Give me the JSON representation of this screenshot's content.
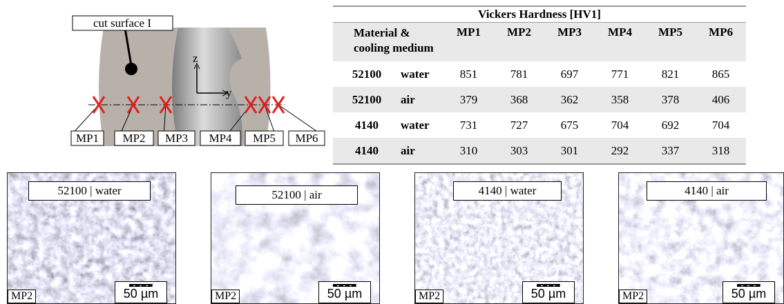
{
  "diagram": {
    "callout": "cut surface I",
    "axis_z": "z",
    "axis_y": "y",
    "points": [
      "MP1",
      "MP2",
      "MP3",
      "MP4",
      "MP5",
      "MP6"
    ]
  },
  "table": {
    "title": "Vickers Hardness [HV1]",
    "header": [
      "Material &\ncooling medium",
      "MP1",
      "MP2",
      "MP3",
      "MP4",
      "MP5",
      "MP6"
    ],
    "rows": [
      [
        "52100",
        "water",
        851,
        781,
        697,
        771,
        821,
        865
      ],
      [
        "52100",
        "air",
        379,
        368,
        362,
        358,
        378,
        406
      ],
      [
        "4140",
        "water",
        731,
        727,
        675,
        704,
        692,
        704
      ],
      [
        "4140",
        "air",
        310,
        303,
        301,
        292,
        337,
        318
      ]
    ]
  },
  "micrographs": [
    {
      "label": "52100 | water",
      "point": "MP2",
      "scale": "50 µm"
    },
    {
      "label": "52100 | air",
      "point": "MP2",
      "scale": "50 µm"
    },
    {
      "label": "4140 | water",
      "point": "MP2",
      "scale": "50 µm"
    },
    {
      "label": "4140 | air",
      "point": "MP2",
      "scale": "50 µm"
    }
  ]
}
